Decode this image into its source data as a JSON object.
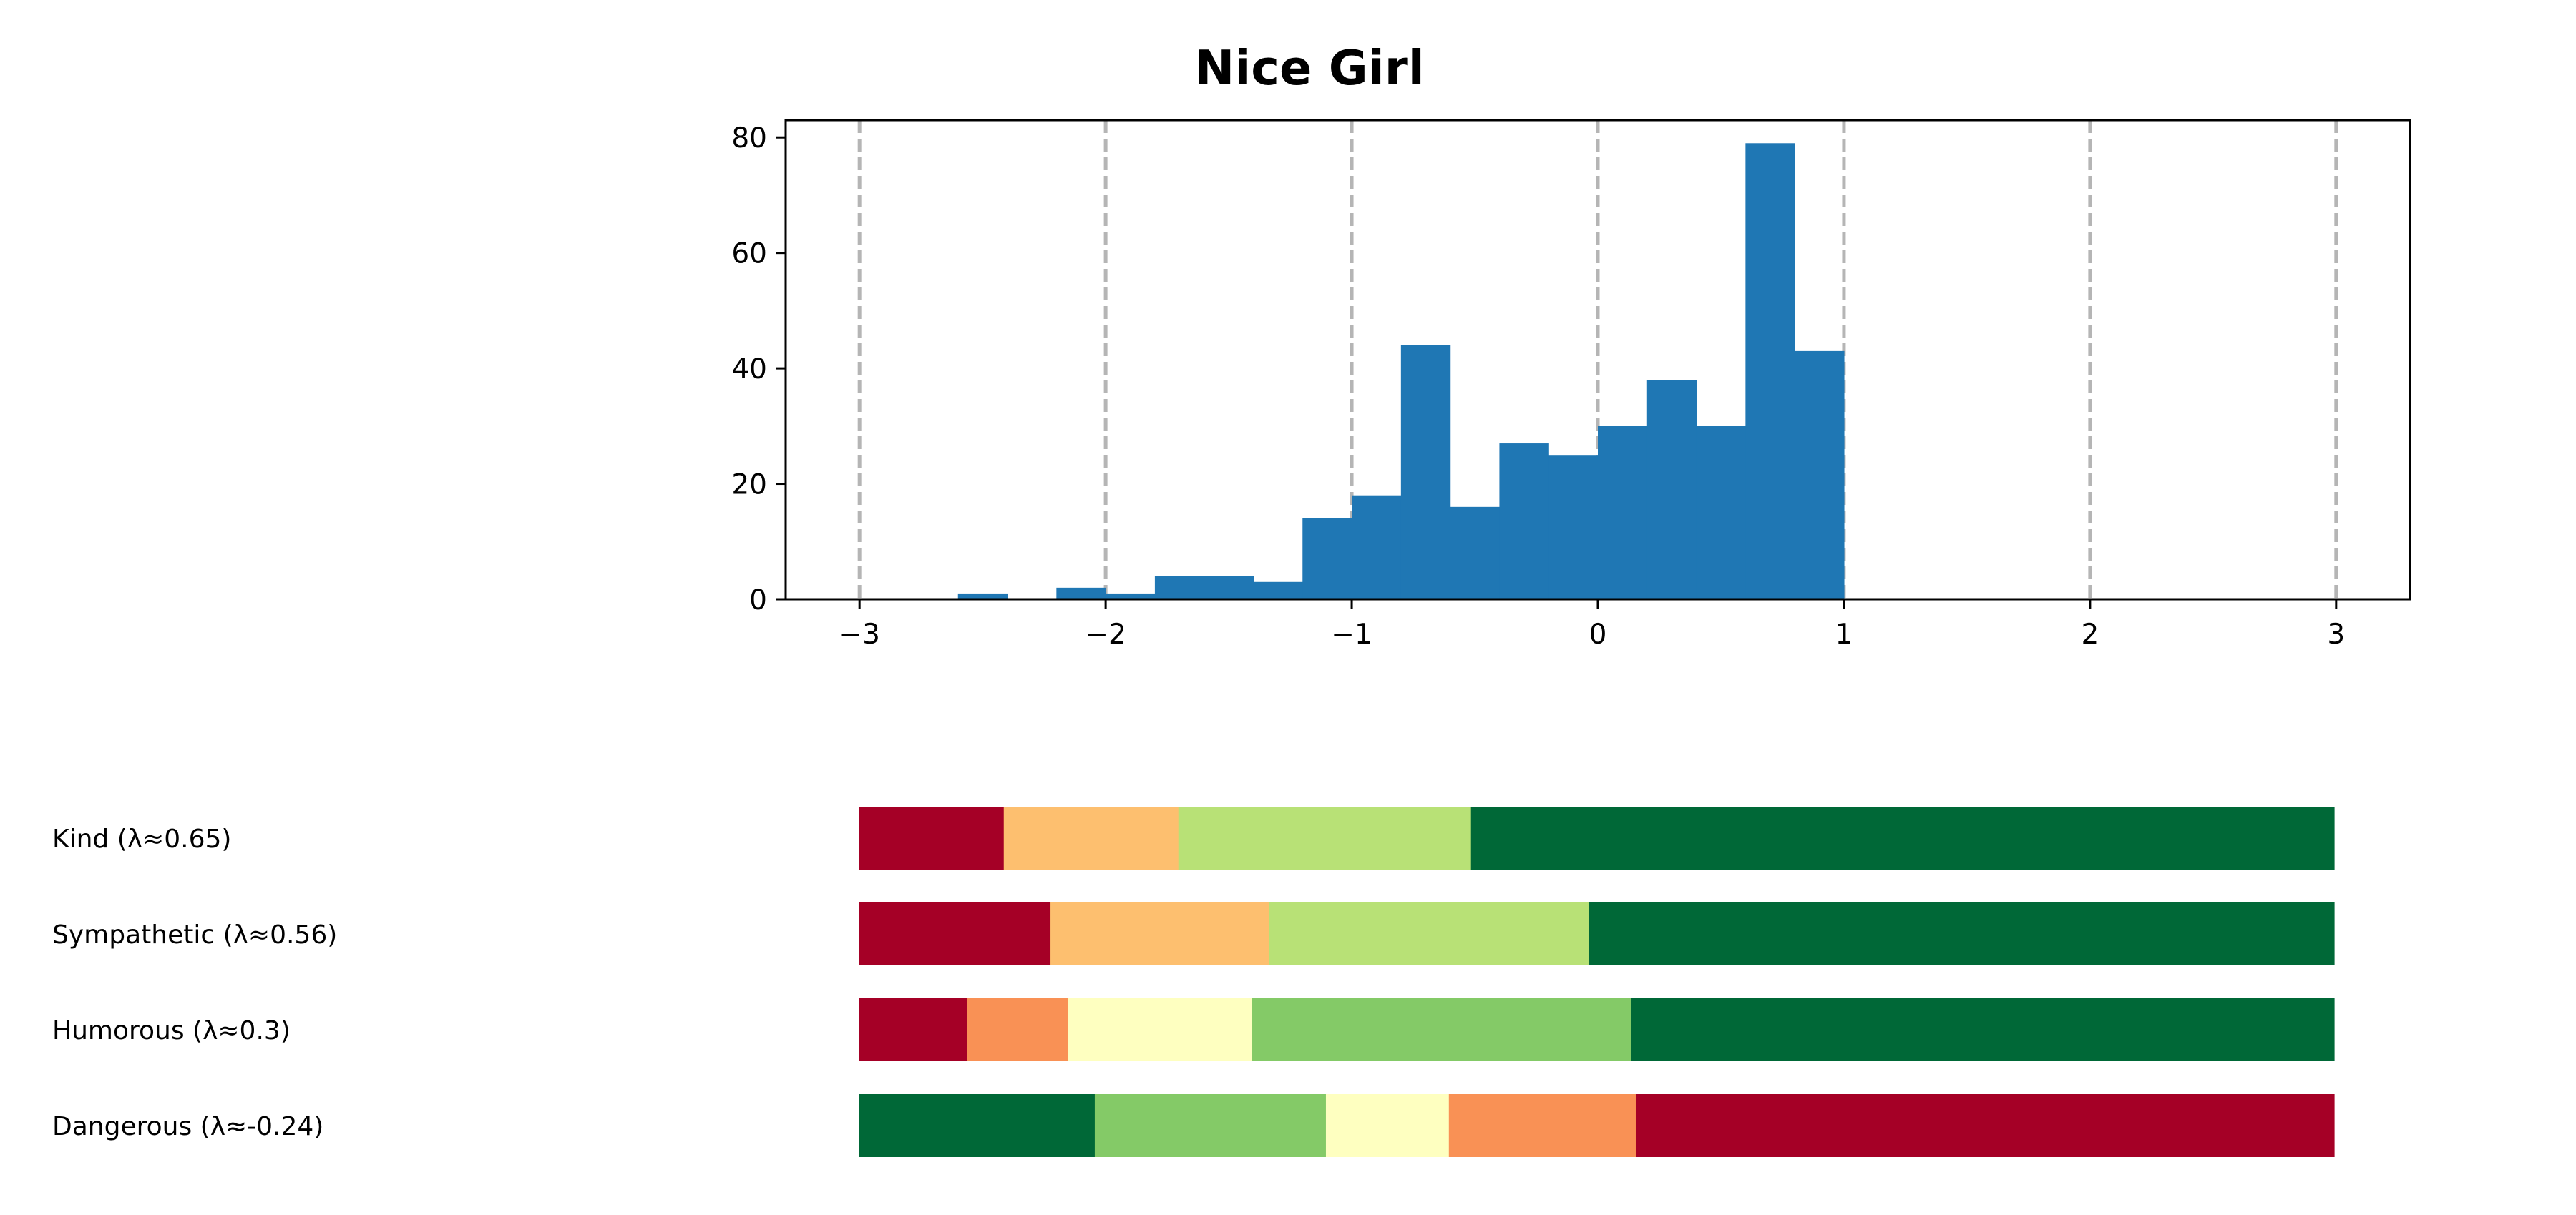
{
  "chart_data": {
    "type": "bar",
    "title": "Nice Girl",
    "histogram": {
      "bin_width": 0.2,
      "xlim": [
        -3.3,
        3.3
      ],
      "ylim": [
        0,
        83
      ],
      "x_ticks": [
        -3,
        -2,
        -1,
        0,
        1,
        2,
        3
      ],
      "x_tick_labels": [
        "−3",
        "−2",
        "−1",
        "0",
        "1",
        "2",
        "3"
      ],
      "y_ticks": [
        0,
        20,
        40,
        60,
        80
      ],
      "y_tick_labels": [
        "0",
        "20",
        "40",
        "60",
        "80"
      ],
      "vlines": [
        -3,
        -2,
        -1,
        0,
        1,
        2,
        3
      ],
      "color": "#1f77b4",
      "vline_color": "#b5b5b5",
      "bins": [
        {
          "x0": -2.6,
          "count": 1
        },
        {
          "x0": -2.2,
          "count": 2
        },
        {
          "x0": -2.0,
          "count": 1
        },
        {
          "x0": -1.8,
          "count": 4
        },
        {
          "x0": -1.6,
          "count": 4
        },
        {
          "x0": -1.4,
          "count": 3
        },
        {
          "x0": -1.2,
          "count": 14
        },
        {
          "x0": -1.0,
          "count": 18
        },
        {
          "x0": -0.8,
          "count": 44
        },
        {
          "x0": -0.6,
          "count": 16
        },
        {
          "x0": -0.4,
          "count": 27
        },
        {
          "x0": -0.2,
          "count": 25
        },
        {
          "x0": 0.0,
          "count": 30
        },
        {
          "x0": 0.2,
          "count": 38
        },
        {
          "x0": 0.4,
          "count": 30
        },
        {
          "x0": 0.6,
          "count": 79
        },
        {
          "x0": 0.8,
          "count": 43
        }
      ]
    },
    "stacked_bars": {
      "range": [
        -3,
        3
      ],
      "rows": [
        {
          "label": "Kind (λ≈0.65)",
          "segments": [
            {
              "from": -3.0,
              "to": -2.41,
              "color": "#a50026"
            },
            {
              "from": -2.41,
              "to": -1.7,
              "color": "#fdbf6f"
            },
            {
              "from": -1.7,
              "to": -0.51,
              "color": "#b8e176"
            },
            {
              "from": -0.51,
              "to": 3.0,
              "color": "#006837"
            }
          ]
        },
        {
          "label": "Sympathetic (λ≈0.56)",
          "segments": [
            {
              "from": -3.0,
              "to": -2.22,
              "color": "#a50026"
            },
            {
              "from": -2.22,
              "to": -1.33,
              "color": "#fdbf6f"
            },
            {
              "from": -1.33,
              "to": -0.03,
              "color": "#b8e176"
            },
            {
              "from": -0.03,
              "to": 3.0,
              "color": "#006837"
            }
          ]
        },
        {
          "label": "Humorous (λ≈0.3)",
          "segments": [
            {
              "from": -3.0,
              "to": -2.56,
              "color": "#a50026"
            },
            {
              "from": -2.56,
              "to": -2.15,
              "color": "#f99155"
            },
            {
              "from": -2.15,
              "to": -1.4,
              "color": "#feffc0"
            },
            {
              "from": -1.4,
              "to": 0.14,
              "color": "#84ca67"
            },
            {
              "from": 0.14,
              "to": 3.0,
              "color": "#006837"
            }
          ]
        },
        {
          "label": "Dangerous (λ≈-0.24)",
          "segments": [
            {
              "from": -3.0,
              "to": -2.04,
              "color": "#006837"
            },
            {
              "from": -2.04,
              "to": -1.1,
              "color": "#84ca67"
            },
            {
              "from": -1.1,
              "to": -0.6,
              "color": "#feffc0"
            },
            {
              "from": -0.6,
              "to": 0.16,
              "color": "#f99155"
            },
            {
              "from": 0.16,
              "to": 3.0,
              "color": "#a50026"
            }
          ]
        }
      ]
    }
  }
}
